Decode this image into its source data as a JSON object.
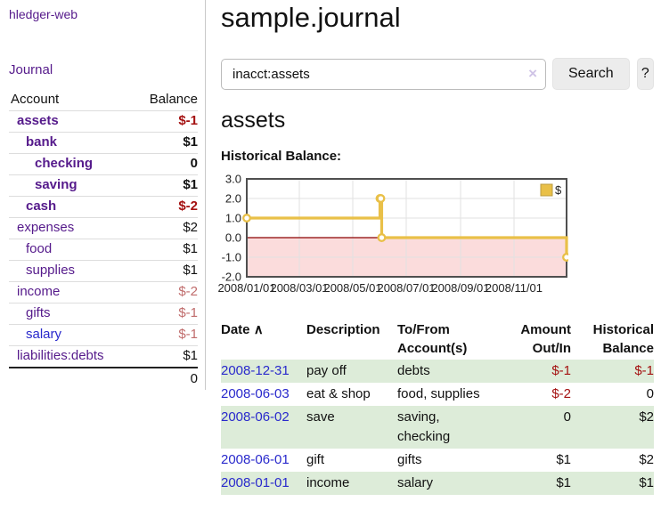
{
  "app_title": "hledger-web",
  "sidebar": {
    "journal_link": "Journal",
    "account_header": "Account",
    "balance_header": "Balance",
    "accounts": [
      {
        "name": "assets",
        "balance": "$-1"
      },
      {
        "name": "bank",
        "balance": "$1"
      },
      {
        "name": "checking",
        "balance": "0"
      },
      {
        "name": "saving",
        "balance": "$1"
      },
      {
        "name": "cash",
        "balance": "$-2"
      },
      {
        "name": "expenses",
        "balance": "$2"
      },
      {
        "name": "food",
        "balance": "$1"
      },
      {
        "name": "supplies",
        "balance": "$1"
      },
      {
        "name": "income",
        "balance": "$-2"
      },
      {
        "name": "gifts",
        "balance": "$-1"
      },
      {
        "name": "salary",
        "balance": "$-1"
      },
      {
        "name": "liabilities:debts",
        "balance": "$1"
      }
    ],
    "total": "0"
  },
  "header": {
    "title": "sample.journal"
  },
  "search": {
    "value": "inacct:assets",
    "clear_label": "×",
    "button_label": "Search",
    "help_label": "?"
  },
  "account_page": {
    "heading": "assets",
    "chart_title": "Historical Balance:"
  },
  "chart_data": {
    "type": "line",
    "step": true,
    "title": "Historical Balance",
    "series": [
      {
        "name": "$",
        "points": [
          {
            "date": "2008-01-01",
            "value": 1
          },
          {
            "date": "2008-06-01",
            "value": 2
          },
          {
            "date": "2008-06-02",
            "value": 2
          },
          {
            "date": "2008-06-03",
            "value": 0
          },
          {
            "date": "2008-12-31",
            "value": -1
          }
        ]
      }
    ],
    "x_ticks": [
      "2008/01/01",
      "2008/03/01",
      "2008/05/01",
      "2008/07/01",
      "2008/09/01",
      "2008/11/01"
    ],
    "y_ticks": [
      3.0,
      2.0,
      1.0,
      0.0,
      -1.0,
      -2.0
    ],
    "ylim": [
      -2,
      3
    ],
    "xlim": [
      "2008-01-01",
      "2008-12-31"
    ],
    "legend": {
      "label": "$",
      "position": "top-right"
    },
    "grid": true,
    "colors": {
      "line": "#e9c048",
      "marker_fill": "#ffffff",
      "negative_region": "#fbdcdc",
      "zero_line": "#8b0000",
      "grid_line": "#e2e2e2",
      "border": "#4f4f4f"
    }
  },
  "register": {
    "headers": {
      "date": "Date",
      "sort_icon": "∧",
      "description": "Description",
      "tofrom": "To/From Account(s)",
      "amount": "Amount Out/In",
      "historical": "Historical Balance"
    },
    "rows": [
      {
        "date": "2008-12-31",
        "description": "pay off",
        "tofrom": "debts",
        "amount": "$-1",
        "historical": "$-1"
      },
      {
        "date": "2008-06-03",
        "description": "eat & shop",
        "tofrom": "food, supplies",
        "amount": "$-2",
        "historical": "0"
      },
      {
        "date": "2008-06-02",
        "description": "save",
        "tofrom": "saving, checking",
        "amount": "0",
        "historical": "$2"
      },
      {
        "date": "2008-06-01",
        "description": "gift",
        "tofrom": "gifts",
        "amount": "$1",
        "historical": "$2"
      },
      {
        "date": "2008-01-01",
        "description": "income",
        "tofrom": "salary",
        "amount": "$1",
        "historical": "$1"
      }
    ]
  }
}
